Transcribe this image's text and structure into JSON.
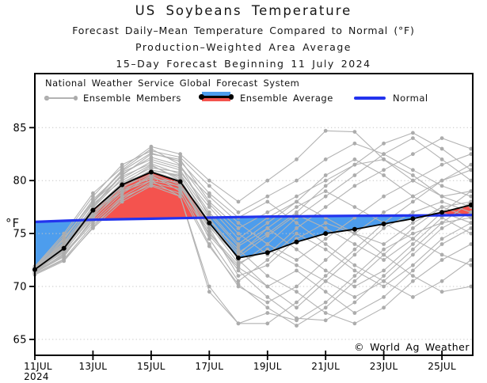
{
  "titles": [
    "US Soybeans Temperature",
    "Forecast Daily–Mean Temperature Compared to Normal (°F)",
    "Production–Weighted Area Average",
    "15–Day Forecast Beginning 11 July 2024"
  ],
  "legend": {
    "header": "National Weather Service Global Forecast System",
    "items": [
      {
        "label": "Ensemble Members",
        "swatch": "gray-line-with-dots"
      },
      {
        "label": "Ensemble Average",
        "swatch": "black-line-blue-red-band"
      },
      {
        "label": "Normal",
        "swatch": "blue-line"
      }
    ]
  },
  "y_axis": {
    "unit_label": "°F",
    "tick_values": [
      65,
      70,
      75,
      80,
      85
    ]
  },
  "x_axis": {
    "tick_labels": [
      "11JUL",
      "13JUL",
      "15JUL",
      "17JUL",
      "19JUL",
      "21JUL",
      "23JUL",
      "25JUL"
    ],
    "year_label": "2024"
  },
  "watermark": "© World Ag Weather",
  "colors": {
    "above_normal_fill": "#F4534E",
    "below_normal_fill": "#4D9DED",
    "normal_line": "#2233EE",
    "ensemble_member_line": "#B3B3B3",
    "ensemble_member_dot": "#ACACAC",
    "ensemble_average": "#000000",
    "gridline": "#C6C6C6"
  },
  "chart_data": {
    "type": "line",
    "title": "US Soybeans Temperature",
    "xlabel": "",
    "ylabel": "°F",
    "x": [
      "11JUL",
      "12JUL",
      "13JUL",
      "14JUL",
      "15JUL",
      "16JUL",
      "17JUL",
      "18JUL",
      "19JUL",
      "20JUL",
      "21JUL",
      "22JUL",
      "23JUL",
      "24JUL",
      "25JUL",
      "26JUL"
    ],
    "ylim": [
      63.5,
      90.1
    ],
    "grid": "dotted-horizontal",
    "legend_position": "top-left-inside",
    "y_ticks": [
      65,
      70,
      75,
      80,
      85
    ],
    "x_major_ticks": [
      "11JUL",
      "13JUL",
      "15JUL",
      "17JUL",
      "19JUL",
      "21JUL",
      "23JUL",
      "25JUL"
    ],
    "series": [
      {
        "name": "Ensemble Average",
        "color": "#000000",
        "values": [
          71.6,
          73.6,
          77.2,
          79.6,
          80.8,
          79.9,
          76.0,
          72.7,
          73.2,
          74.2,
          75.0,
          75.4,
          75.9,
          76.4,
          77.0,
          77.7
        ]
      },
      {
        "name": "Normal",
        "color": "#2233EE",
        "values": [
          76.1,
          76.2,
          76.3,
          76.35,
          76.4,
          76.45,
          76.5,
          76.55,
          76.6,
          76.62,
          76.65,
          76.67,
          76.68,
          76.7,
          76.72,
          76.75
        ]
      }
    ],
    "fills": {
      "average_above_normal": "#F4534E",
      "average_below_normal": "#4D9DED"
    },
    "ensemble_members": {
      "name": "Ensemble Members",
      "color": "#B3B3B3",
      "dot_color": "#ACACAC",
      "values": [
        [
          71.4,
          73.0,
          76.0,
          78.5,
          80.0,
          79.5,
          75.5,
          71.0,
          72.0,
          74.5,
          76.0,
          75.0,
          74.0,
          76.0,
          77.5,
          78.0
        ],
        [
          71.6,
          74.0,
          77.5,
          80.5,
          82.5,
          82.0,
          78.0,
          75.5,
          77.0,
          78.5,
          80.0,
          81.5,
          82.0,
          80.0,
          78.5,
          79.0
        ],
        [
          71.8,
          74.5,
          78.0,
          81.0,
          83.0,
          81.5,
          76.5,
          72.5,
          70.0,
          68.0,
          70.5,
          73.0,
          75.5,
          77.0,
          78.0,
          77.0
        ],
        [
          71.2,
          72.5,
          75.5,
          78.0,
          79.5,
          78.5,
          69.5,
          66.5,
          67.5,
          66.8,
          68.5,
          71.0,
          73.5,
          75.0,
          76.0,
          76.5
        ],
        [
          71.5,
          73.5,
          77.0,
          79.5,
          81.0,
          80.5,
          76.0,
          73.0,
          75.5,
          77.5,
          79.0,
          77.5,
          76.0,
          74.5,
          73.0,
          72.0
        ],
        [
          71.7,
          74.2,
          77.8,
          80.0,
          81.5,
          80.0,
          74.5,
          70.5,
          72.5,
          75.0,
          73.5,
          71.5,
          70.0,
          72.0,
          74.5,
          76.0
        ],
        [
          71.3,
          72.8,
          76.5,
          79.0,
          80.5,
          79.0,
          75.0,
          72.0,
          74.0,
          76.5,
          78.5,
          80.5,
          82.5,
          84.0,
          82.0,
          80.0
        ],
        [
          71.5,
          73.8,
          77.2,
          79.8,
          81.2,
          80.8,
          77.5,
          74.5,
          76.5,
          78.0,
          76.5,
          75.0,
          73.0,
          71.0,
          69.5,
          70.0
        ],
        [
          71.6,
          73.2,
          76.8,
          79.2,
          80.2,
          79.8,
          76.2,
          73.5,
          71.0,
          69.5,
          67.5,
          66.5,
          68.0,
          70.5,
          72.5,
          74.0
        ],
        [
          71.4,
          73.4,
          77.0,
          79.4,
          80.6,
          79.6,
          75.8,
          72.2,
          73.5,
          72.0,
          70.5,
          69.0,
          70.5,
          73.0,
          75.5,
          77.0
        ],
        [
          71.8,
          74.8,
          78.5,
          81.5,
          82.8,
          82.2,
          79.5,
          77.0,
          78.5,
          80.0,
          82.0,
          83.5,
          82.5,
          81.0,
          79.5,
          78.5
        ],
        [
          71.2,
          72.6,
          75.8,
          78.2,
          79.8,
          79.2,
          74.0,
          70.0,
          68.5,
          70.0,
          72.5,
          75.0,
          77.0,
          78.5,
          80.0,
          81.0
        ],
        [
          71.5,
          73.6,
          77.4,
          80.2,
          81.8,
          81.0,
          77.0,
          74.0,
          76.0,
          78.0,
          80.5,
          82.0,
          80.5,
          78.5,
          77.0,
          76.0
        ],
        [
          71.6,
          74.4,
          78.2,
          80.8,
          82.0,
          81.2,
          78.5,
          76.0,
          74.0,
          72.5,
          74.5,
          76.5,
          78.5,
          80.0,
          81.5,
          82.5
        ],
        [
          71.3,
          73.1,
          76.2,
          78.8,
          80.4,
          79.4,
          75.2,
          71.5,
          69.0,
          67.0,
          66.8,
          68.5,
          71.0,
          73.5,
          76.0,
          78.0
        ],
        [
          71.7,
          74.6,
          78.0,
          80.4,
          81.6,
          80.6,
          76.8,
          73.8,
          75.5,
          73.5,
          71.5,
          70.0,
          71.5,
          74.0,
          76.5,
          75.0
        ],
        [
          71.4,
          73.3,
          76.6,
          79.6,
          81.4,
          80.2,
          75.6,
          72.8,
          74.8,
          76.8,
          75.5,
          74.0,
          72.5,
          74.5,
          77.0,
          79.0
        ],
        [
          71.9,
          75.0,
          78.8,
          81.2,
          83.2,
          82.5,
          80.0,
          78.0,
          80.0,
          82.0,
          84.7,
          84.6,
          82.0,
          80.5,
          78.5,
          77.5
        ],
        [
          71.1,
          72.4,
          75.6,
          78.4,
          79.6,
          78.8,
          73.8,
          70.2,
          68.0,
          66.3,
          68.0,
          70.5,
          73.0,
          75.5,
          77.5,
          76.5
        ],
        [
          71.5,
          73.7,
          77.6,
          80.6,
          82.2,
          81.4,
          77.8,
          75.0,
          73.0,
          75.5,
          77.5,
          79.5,
          81.0,
          82.5,
          84.0,
          83.0
        ],
        [
          71.6,
          73.9,
          77.0,
          79.0,
          80.0,
          78.5,
          70.0,
          66.5,
          66.5,
          68.5,
          71.0,
          73.5,
          76.0,
          78.0,
          80.0,
          81.5
        ],
        [
          71.3,
          72.9,
          76.4,
          79.3,
          81.0,
          80.4,
          76.4,
          73.2,
          75.0,
          77.0,
          79.5,
          81.5,
          83.5,
          84.5,
          83.0,
          81.0
        ],
        [
          71.7,
          74.1,
          77.9,
          80.9,
          82.6,
          81.8,
          78.8,
          76.5,
          78.0,
          76.0,
          74.0,
          72.0,
          70.5,
          69.0,
          70.5,
          72.5
        ],
        [
          71.4,
          73.5,
          76.9,
          79.7,
          80.9,
          80.0,
          74.8,
          71.8,
          70.0,
          71.5,
          69.5,
          67.5,
          69.0,
          71.5,
          74.0,
          75.5
        ]
      ]
    }
  }
}
